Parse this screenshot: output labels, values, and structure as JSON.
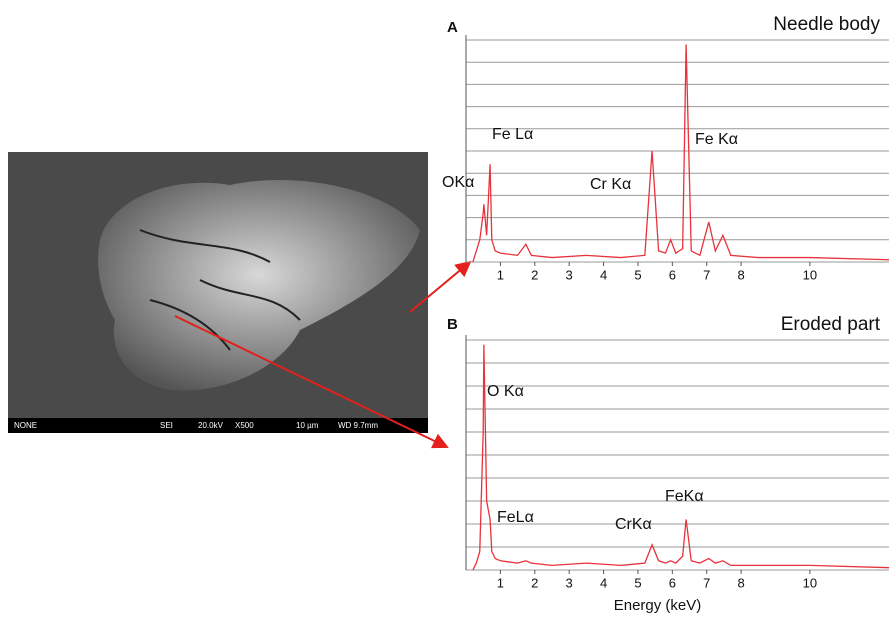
{
  "image": {
    "labels": [
      "NONE",
      "SEI",
      "20.0kV",
      "X500",
      "10 µm",
      "WD 9.7mm"
    ]
  },
  "chart_data": [
    {
      "type": "line",
      "panel": "A",
      "title": "Needle body",
      "color": "#e8323c",
      "grid": true,
      "x": [
        0.2,
        0.3,
        0.4,
        0.5,
        0.52,
        0.6,
        0.7,
        0.75,
        0.85,
        1.0,
        1.5,
        1.74,
        1.9,
        2.5,
        3.5,
        4.5,
        5.2,
        5.41,
        5.6,
        5.8,
        5.95,
        6.1,
        6.3,
        6.4,
        6.55,
        6.8,
        7.06,
        7.25,
        7.47,
        7.7,
        8.5,
        10,
        12.3
      ],
      "values": [
        0,
        5,
        10,
        22,
        26,
        12,
        44,
        10,
        5,
        4,
        3,
        8,
        3,
        2,
        3,
        2,
        3,
        50,
        5,
        4,
        10,
        4,
        6,
        98,
        5,
        3,
        18,
        5,
        12,
        3,
        2,
        2,
        1
      ],
      "xlim": [
        0,
        12.3
      ],
      "xticks": [
        1,
        2,
        3,
        4,
        5,
        6,
        7,
        8,
        10
      ],
      "ylim": [
        0,
        100
      ],
      "yticks": [
        0,
        10,
        20,
        30,
        40,
        50,
        60,
        70,
        80,
        90,
        100
      ],
      "annotations": [
        "OKα",
        "Fe Lα",
        "Cr Kα",
        "Fe Kα"
      ]
    },
    {
      "type": "line",
      "panel": "B",
      "title": "Eroded part",
      "color": "#e8323c",
      "grid": true,
      "xlabel": "Energy (keV)",
      "x": [
        0.2,
        0.3,
        0.4,
        0.5,
        0.52,
        0.6,
        0.7,
        0.75,
        0.85,
        1.0,
        1.5,
        1.74,
        1.9,
        2.5,
        3.5,
        4.5,
        5.2,
        5.41,
        5.6,
        5.8,
        5.95,
        6.1,
        6.3,
        6.4,
        6.55,
        6.8,
        7.06,
        7.25,
        7.47,
        7.7,
        8.5,
        10,
        12.3
      ],
      "values": [
        0,
        3,
        8,
        60,
        98,
        30,
        22,
        8,
        5,
        4,
        3,
        4,
        3,
        2,
        3,
        2,
        3,
        11,
        4,
        3,
        4,
        3,
        6,
        22,
        4,
        3,
        5,
        3,
        4,
        2,
        2,
        2,
        1
      ],
      "xlim": [
        0,
        12.3
      ],
      "xticks": [
        1,
        2,
        3,
        4,
        5,
        6,
        7,
        8,
        10
      ],
      "ylim": [
        0,
        100
      ],
      "yticks": [
        0,
        10,
        20,
        30,
        40,
        50,
        60,
        70,
        80,
        90,
        100
      ],
      "annotations": [
        "O Kα",
        "FeLα",
        "CrKα",
        "FeKα"
      ]
    }
  ]
}
